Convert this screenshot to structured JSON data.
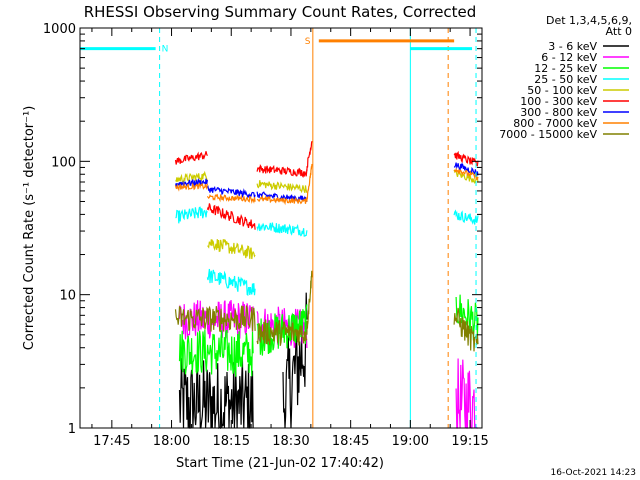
{
  "chart_data": {
    "type": "line",
    "title": "RHESSI Observing Summary Count Rates, Corrected",
    "xlabel": "Start Time (21-Jun-02 17:40:42)",
    "ylabel": "Corrected Count Rate (s⁻¹ detector⁻¹)",
    "yscale": "log",
    "ylim": [
      1,
      1000
    ],
    "xlim_minutes": [
      -3,
      98
    ],
    "x_ticks": [
      {
        "m": 5,
        "label": "17:45"
      },
      {
        "m": 20,
        "label": "18:00"
      },
      {
        "m": 35,
        "label": "18:15"
      },
      {
        "m": 50,
        "label": "18:30"
      },
      {
        "m": 65,
        "label": "18:45"
      },
      {
        "m": 80,
        "label": "19:00"
      },
      {
        "m": 95,
        "label": "19:15"
      }
    ],
    "y_ticks": [
      {
        "v": 1,
        "label": "1"
      },
      {
        "v": 10,
        "label": "10"
      },
      {
        "v": 100,
        "label": "100"
      },
      {
        "v": 1000,
        "label": "1000"
      }
    ],
    "legend": {
      "placement": "right",
      "header": [
        "Det 1,3,4,5,6,9,",
        "Att 0"
      ],
      "entries": [
        {
          "label": "3 - 6 keV",
          "color": "#000000"
        },
        {
          "label": "6 - 12 keV",
          "color": "#ff00ff"
        },
        {
          "label": "12 - 25 keV",
          "color": "#00ff00"
        },
        {
          "label": "25 - 50 keV",
          "color": "#00ffff"
        },
        {
          "label": "50 - 100 keV",
          "color": "#cccc00"
        },
        {
          "label": "100 - 300 keV",
          "color": "#ff0000"
        },
        {
          "label": "300 - 800 keV",
          "color": "#0000ff"
        },
        {
          "label": "800 - 7000 keV",
          "color": "#ff8000"
        },
        {
          "label": "7000 - 15000 keV",
          "color": "#808000"
        }
      ]
    },
    "flag_bars": [
      {
        "label": "N",
        "x0": -3,
        "x1": 16,
        "y": 700,
        "color": "#00ffff"
      },
      {
        "label": "S",
        "x0": 57,
        "x1": 91,
        "y": 800,
        "color": "#ff8000"
      },
      {
        "label": "",
        "x0": 80,
        "x1": 95.5,
        "y": 700,
        "color": "#00ffff"
      }
    ],
    "vlines": [
      {
        "x": -3,
        "color": "#00ffff",
        "dash": false
      },
      {
        "x": 17,
        "color": "#00ffff",
        "dash": true
      },
      {
        "x": 55.5,
        "color": "#ff8000",
        "dash": false
      },
      {
        "x": 80,
        "color": "#00ffff",
        "dash": false
      },
      {
        "x": 89.5,
        "color": "#ff8000",
        "dash": true
      },
      {
        "x": 96.5,
        "color": "#00ffff",
        "dash": true
      }
    ],
    "series": [
      {
        "name": "3 - 6 keV",
        "color": "#000000",
        "segments": [
          {
            "x0": 22,
            "x1": 40.5,
            "y0": 1.5,
            "y1": 1.5,
            "noise": 0.35
          },
          {
            "x0": 48,
            "x1": 54,
            "y0": 1.5,
            "y1": 4.5,
            "noise": 0.4
          }
        ]
      },
      {
        "name": "6 - 12 keV",
        "color": "#ff00ff",
        "segments": [
          {
            "x0": 22,
            "x1": 40.5,
            "y0": 6.5,
            "y1": 6.5,
            "noise": 0.15
          },
          {
            "x0": 41.5,
            "x1": 54,
            "y0": 6,
            "y1": 5.5,
            "noise": 0.15
          },
          {
            "x0": 91.5,
            "x1": 97,
            "y0": 1.5,
            "y1": 1.5,
            "noise": 0.35
          }
        ]
      },
      {
        "name": "12 - 25 keV",
        "color": "#00ff00",
        "segments": [
          {
            "x0": 22,
            "x1": 40.5,
            "y0": 3.8,
            "y1": 3.6,
            "noise": 0.18
          },
          {
            "x0": 41.5,
            "x1": 54,
            "y0": 4.8,
            "y1": 6,
            "noise": 0.15
          },
          {
            "x0": 91.5,
            "x1": 97,
            "y0": 8,
            "y1": 6,
            "noise": 0.15
          }
        ]
      },
      {
        "name": "25 - 50 keV",
        "color": "#00ffff",
        "segments": [
          {
            "x0": 21,
            "x1": 29,
            "y0": 38,
            "y1": 42,
            "noise": 0.05
          },
          {
            "x0": 29,
            "x1": 41,
            "y0": 14,
            "y1": 11,
            "noise": 0.06
          },
          {
            "x0": 41.5,
            "x1": 54,
            "y0": 33,
            "y1": 30,
            "noise": 0.04
          },
          {
            "x0": 91,
            "x1": 97,
            "y0": 40,
            "y1": 36,
            "noise": 0.04
          }
        ]
      },
      {
        "name": "50 - 100 keV",
        "color": "#cccc00",
        "segments": [
          {
            "x0": 21,
            "x1": 29,
            "y0": 73,
            "y1": 78,
            "noise": 0.03
          },
          {
            "x0": 29,
            "x1": 41,
            "y0": 25,
            "y1": 20,
            "noise": 0.05
          },
          {
            "x0": 41.5,
            "x1": 54,
            "y0": 68,
            "y1": 62,
            "noise": 0.03
          },
          {
            "x0": 91,
            "x1": 97,
            "y0": 82,
            "y1": 72,
            "noise": 0.03
          }
        ]
      },
      {
        "name": "100 - 300 keV",
        "color": "#ff0000",
        "segments": [
          {
            "x0": 21,
            "x1": 29,
            "y0": 100,
            "y1": 112,
            "noise": 0.03
          },
          {
            "x0": 29,
            "x1": 41,
            "y0": 45,
            "y1": 33,
            "noise": 0.04
          },
          {
            "x0": 41.5,
            "x1": 54,
            "y0": 88,
            "y1": 82,
            "noise": 0.03
          },
          {
            "x0": 54,
            "x1": 55.3,
            "y0": 90,
            "y1": 145,
            "noise": 0.03
          },
          {
            "x0": 91,
            "x1": 97,
            "y0": 112,
            "y1": 95,
            "noise": 0.03
          }
        ]
      },
      {
        "name": "300 - 800 keV",
        "color": "#0000ff",
        "segments": [
          {
            "x0": 21,
            "x1": 29,
            "y0": 68,
            "y1": 70,
            "noise": 0.025
          },
          {
            "x0": 29,
            "x1": 41,
            "y0": 62,
            "y1": 56,
            "noise": 0.025
          },
          {
            "x0": 41.5,
            "x1": 54,
            "y0": 56,
            "y1": 52,
            "noise": 0.025
          },
          {
            "x0": 91,
            "x1": 97,
            "y0": 95,
            "y1": 82,
            "noise": 0.025
          }
        ]
      },
      {
        "name": "800 - 7000 keV",
        "color": "#ff8000",
        "segments": [
          {
            "x0": 21,
            "x1": 29,
            "y0": 64,
            "y1": 65,
            "noise": 0.02
          },
          {
            "x0": 29,
            "x1": 41,
            "y0": 54,
            "y1": 52,
            "noise": 0.02
          },
          {
            "x0": 41.5,
            "x1": 54,
            "y0": 52,
            "y1": 50,
            "noise": 0.02
          },
          {
            "x0": 54,
            "x1": 55.3,
            "y0": 52,
            "y1": 95,
            "noise": 0.02
          },
          {
            "x0": 91,
            "x1": 97,
            "y0": 88,
            "y1": 76,
            "noise": 0.02
          }
        ]
      },
      {
        "name": "7000 - 15000 keV",
        "color": "#808000",
        "segments": [
          {
            "x0": 21,
            "x1": 41,
            "y0": 6.6,
            "y1": 6.6,
            "noise": 0.1
          },
          {
            "x0": 41.5,
            "x1": 54,
            "y0": 5.2,
            "y1": 5.2,
            "noise": 0.1
          },
          {
            "x0": 54,
            "x1": 55.3,
            "y0": 5.5,
            "y1": 15,
            "noise": 0.05
          },
          {
            "x0": 91,
            "x1": 97,
            "y0": 7,
            "y1": 4,
            "noise": 0.1
          }
        ]
      }
    ]
  },
  "footer": {
    "timestamp": "16-Oct-2021 14:23"
  }
}
